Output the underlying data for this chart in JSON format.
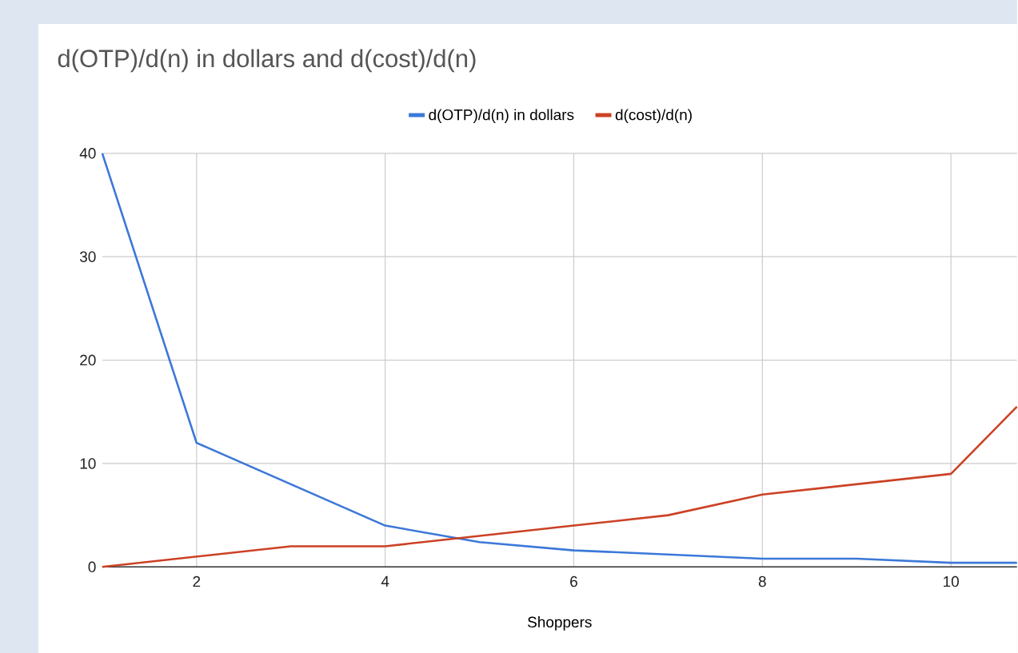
{
  "chart_data": {
    "type": "line",
    "title": "d(OTP)/d(n) in dollars and d(cost)/d(n)",
    "xlabel": "Shoppers",
    "x": [
      1,
      2,
      3,
      4,
      5,
      6,
      7,
      8,
      9,
      10,
      10.7
    ],
    "series": [
      {
        "name": "d(OTP)/d(n) in dollars",
        "color": "#3c78d8",
        "values": [
          40,
          12,
          8,
          4,
          2.4,
          1.6,
          1.2,
          0.8,
          0.8,
          0.4,
          0.4
        ]
      },
      {
        "name": "d(cost)/d(n)",
        "color": "#cc4125",
        "values": [
          0,
          1,
          2,
          2,
          3,
          4,
          5,
          7,
          8,
          9,
          15.5
        ]
      }
    ],
    "xlim": [
      1,
      10.7
    ],
    "xticks": [
      2,
      4,
      6,
      8,
      10
    ],
    "ylim": [
      0,
      40
    ],
    "yticks": [
      0,
      10,
      20,
      30,
      40
    ],
    "grid": true,
    "legend": "top",
    "marker": "none",
    "line_style": "solid"
  }
}
